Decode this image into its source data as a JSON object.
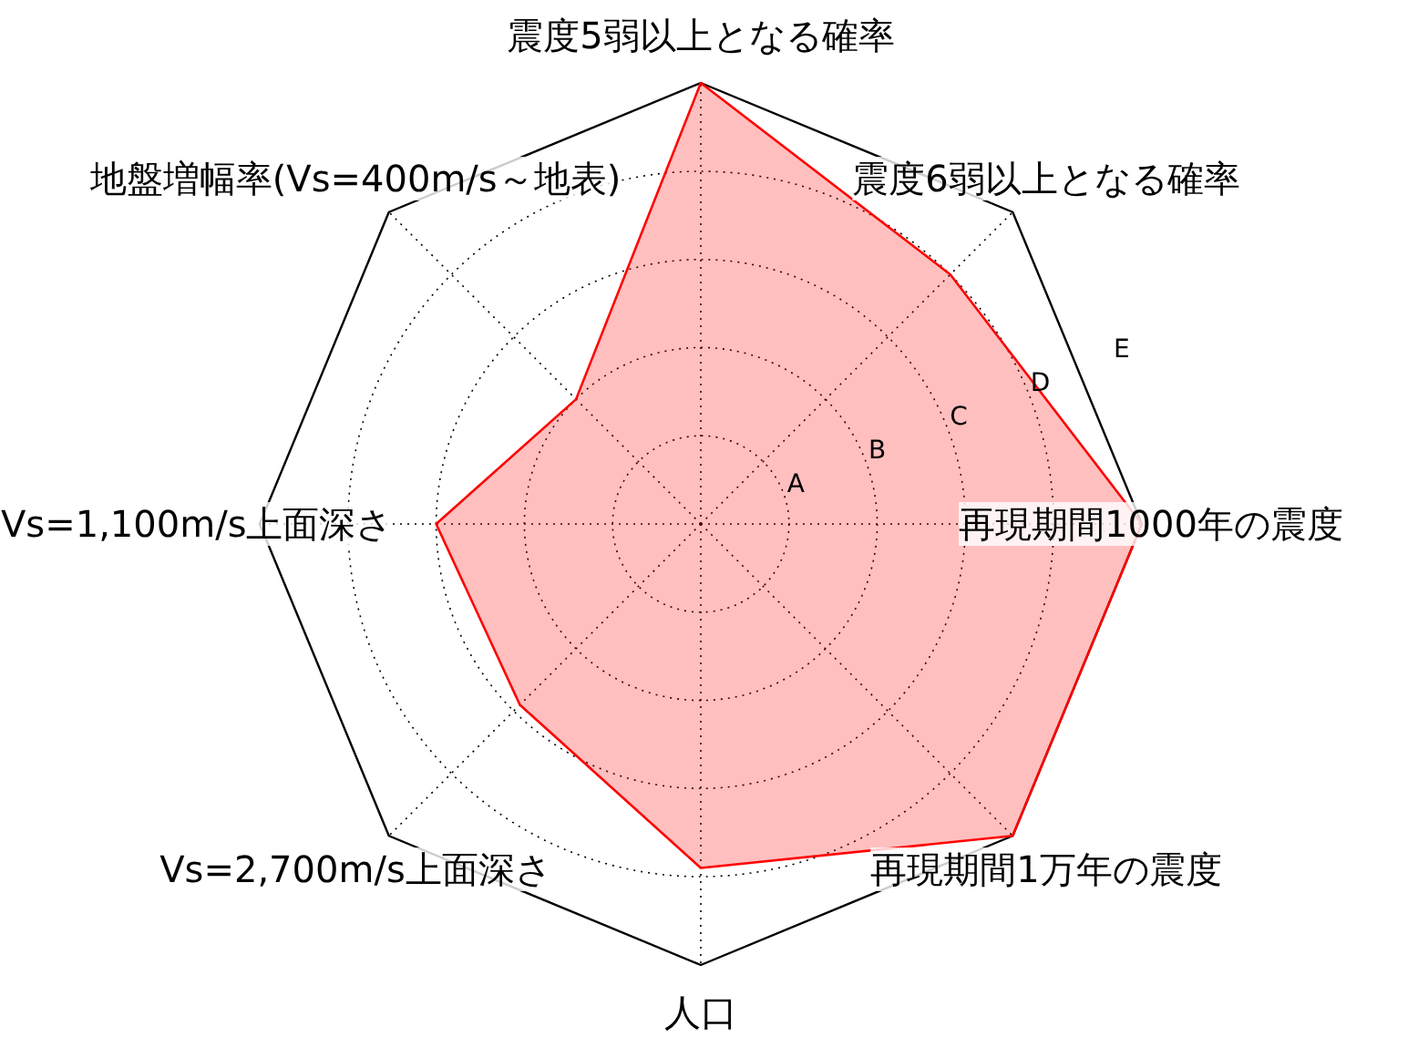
{
  "chart_data": {
    "type": "radar",
    "categories": [
      "震度5弱以上となる確率",
      "震度6弱以上となる確率",
      "再現期間1000年の震度",
      "再現期間1万年の震度",
      "人口",
      "Vs=2,700m/s上面深さ",
      "Vs=1,100m/s上面深さ",
      "地盤増幅率(Vs=400m/s～地表)"
    ],
    "series": [
      {
        "color": "#ff0000",
        "values": [
          5,
          4,
          5,
          5,
          3.9,
          2.9,
          3,
          2
        ]
      }
    ],
    "ylim": [
      0,
      5
    ],
    "yticks": [
      {
        "value": 1,
        "label": "A"
      },
      {
        "value": 2,
        "label": "B"
      },
      {
        "value": 3,
        "label": "C"
      },
      {
        "value": 4,
        "label": "D"
      },
      {
        "value": 5,
        "label": "E"
      }
    ],
    "grid": true
  }
}
